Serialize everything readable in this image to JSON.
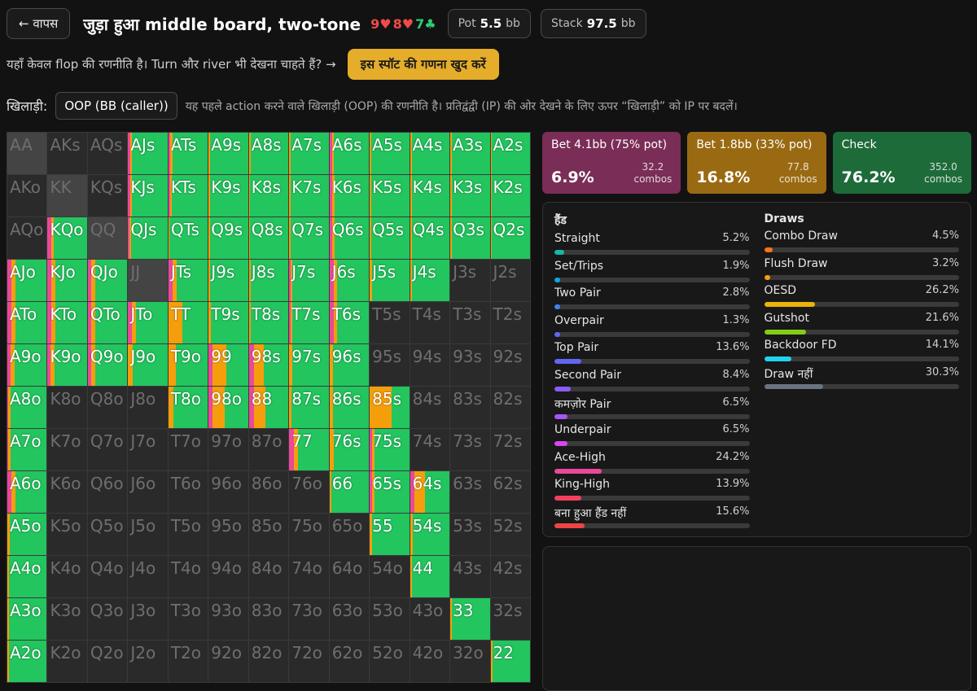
{
  "header": {
    "back_label": "← वापस",
    "title": "जुड़ा हुआ middle board, two-tone",
    "board_cards": [
      {
        "rank": "9",
        "suit": "♥",
        "color": "#ee4b4b"
      },
      {
        "rank": "8",
        "suit": "♥",
        "color": "#ee4b4b"
      },
      {
        "rank": "7",
        "suit": "♣",
        "color": "#2ecc71"
      }
    ],
    "pot_label": "Pot",
    "pot_value": "5.5",
    "pot_unit": "bb",
    "stack_label": "Stack",
    "stack_value": "97.5",
    "stack_unit": "bb"
  },
  "notice": {
    "text": "यहाँ केवल flop की रणनीति है। Turn और river भी देखना चाहते हैं? →",
    "button_label": "इस स्पॉट की गणना खुद करें"
  },
  "player": {
    "label": "खिलाड़ी:",
    "selected": "OOP (BB (caller))",
    "description": "यह पहले action करने वाले खिलाड़ी (OOP) की रणनीति है। प्रतिद्वंद्वी (IP) की ओर देखने के लिए ऊपर “खिलाड़ी” को IP पर बदलें।"
  },
  "colors": {
    "bet_large": "#ec4899",
    "bet_small": "#f59e0b",
    "check": "#22c55e",
    "bet_large_card": "#7a2d56",
    "bet_small_card": "#9a6a12",
    "check_card": "#1e6b3a"
  },
  "actions": [
    {
      "name": "Bet 4.1bb (75% pot)",
      "pct": "6.9%",
      "combos_value": "32.2",
      "combos_label": "combos",
      "card_color": "#7a2d56"
    },
    {
      "name": "Bet 1.8bb (33% pot)",
      "pct": "16.8%",
      "combos_value": "77.8",
      "combos_label": "combos",
      "card_color": "#9a6a12"
    },
    {
      "name": "Check",
      "pct": "76.2%",
      "combos_value": "352.0",
      "combos_label": "combos",
      "card_color": "#1e6b3a"
    }
  ],
  "hand_stats": {
    "title": "हैंड",
    "items": [
      {
        "name": "Straight",
        "value": "5.2%",
        "fraction": 0.052,
        "color": "#14b8a6"
      },
      {
        "name": "Set/Trips",
        "value": "1.9%",
        "fraction": 0.019,
        "color": "#0ea5e9"
      },
      {
        "name": "Two Pair",
        "value": "2.8%",
        "fraction": 0.028,
        "color": "#3b82f6"
      },
      {
        "name": "Overpair",
        "value": "1.3%",
        "fraction": 0.013,
        "color": "#6366f1"
      },
      {
        "name": "Top Pair",
        "value": "13.6%",
        "fraction": 0.136,
        "color": "#6366f1"
      },
      {
        "name": "Second Pair",
        "value": "8.4%",
        "fraction": 0.084,
        "color": "#8b5cf6"
      },
      {
        "name": "कमज़ोर Pair",
        "value": "6.5%",
        "fraction": 0.065,
        "color": "#a855f7"
      },
      {
        "name": "Underpair",
        "value": "6.5%",
        "fraction": 0.065,
        "color": "#d946ef"
      },
      {
        "name": "Ace-High",
        "value": "24.2%",
        "fraction": 0.242,
        "color": "#ec4899"
      },
      {
        "name": "King-High",
        "value": "13.9%",
        "fraction": 0.139,
        "color": "#f43f5e"
      },
      {
        "name": "बना हुआ हैंड नहीं",
        "value": "15.6%",
        "fraction": 0.156,
        "color": "#ef4444"
      }
    ]
  },
  "draw_stats": {
    "title": "Draws",
    "items": [
      {
        "name": "Combo Draw",
        "value": "4.5%",
        "fraction": 0.045,
        "color": "#f97316"
      },
      {
        "name": "Flush Draw",
        "value": "3.2%",
        "fraction": 0.032,
        "color": "#f59e0b"
      },
      {
        "name": "OESD",
        "value": "26.2%",
        "fraction": 0.262,
        "color": "#eab308"
      },
      {
        "name": "Gutshot",
        "value": "21.6%",
        "fraction": 0.216,
        "color": "#84cc16"
      },
      {
        "name": "Backdoor FD",
        "value": "14.1%",
        "fraction": 0.141,
        "color": "#22d3ee"
      },
      {
        "name": "Draw नहीं",
        "value": "30.3%",
        "fraction": 0.303,
        "color": "#6b7280"
      }
    ]
  },
  "grid": {
    "ranks": [
      "A",
      "K",
      "Q",
      "J",
      "T",
      "9",
      "8",
      "7",
      "6",
      "5",
      "4",
      "3",
      "2"
    ],
    "hands": {
      "AJs": [
        0.05,
        0.05,
        0.9
      ],
      "ATs": [
        0.05,
        0.05,
        0.9
      ],
      "A9s": [
        0,
        0.04,
        0.96
      ],
      "A8s": [
        0,
        0.04,
        0.96
      ],
      "A7s": [
        0,
        0.03,
        0.97
      ],
      "A6s": [
        0.06,
        0.05,
        0.89
      ],
      "A5s": [
        0,
        0.04,
        0.96
      ],
      "A4s": [
        0,
        0.04,
        0.96
      ],
      "A3s": [
        0,
        0.04,
        0.96
      ],
      "A2s": [
        0,
        0.04,
        0.96
      ],
      "KJs": [
        0.05,
        0.05,
        0.9
      ],
      "KTs": [
        0.04,
        0.04,
        0.92
      ],
      "K9s": [
        0,
        0.03,
        0.97
      ],
      "K8s": [
        0,
        0.03,
        0.97
      ],
      "K7s": [
        0,
        0.03,
        0.97
      ],
      "K6s": [
        0.07,
        0.05,
        0.88
      ],
      "K5s": [
        0,
        0.04,
        0.96
      ],
      "K4s": [
        0,
        0.04,
        0.96
      ],
      "K3s": [
        0,
        0.04,
        0.96
      ],
      "K2s": [
        0,
        0.04,
        0.96
      ],
      "KQo": [
        0.1,
        0.06,
        0.84
      ],
      "QJs": [
        0.04,
        0.04,
        0.92
      ],
      "QTs": [
        0,
        0.03,
        0.97
      ],
      "Q9s": [
        0,
        0.03,
        0.97
      ],
      "Q8s": [
        0,
        0.03,
        0.97
      ],
      "Q7s": [
        0,
        0.03,
        0.97
      ],
      "Q6s": [
        0.07,
        0.05,
        0.88
      ],
      "Q5s": [
        0,
        0.04,
        0.96
      ],
      "Q4s": [
        0,
        0.04,
        0.96
      ],
      "Q3s": [
        0,
        0.04,
        0.96
      ],
      "Q2s": [
        0,
        0.04,
        0.96
      ],
      "AJo": [
        0.1,
        0.1,
        0.8
      ],
      "KJo": [
        0.1,
        0.1,
        0.8
      ],
      "QJo": [
        0.08,
        0.1,
        0.82
      ],
      "JTs": [
        0.1,
        0.1,
        0.8
      ],
      "J9s": [
        0,
        0.03,
        0.97
      ],
      "J8s": [
        0,
        0.05,
        0.95
      ],
      "J7s": [
        0.03,
        0.05,
        0.92
      ],
      "J6s": [
        0.1,
        0.1,
        0.8
      ],
      "J5s": [
        0,
        0.06,
        0.94
      ],
      "J4s": [
        0,
        0.04,
        0.96
      ],
      "ATo": [
        0.1,
        0.1,
        0.8
      ],
      "KTo": [
        0.1,
        0.1,
        0.8
      ],
      "QTo": [
        0.08,
        0.1,
        0.82
      ],
      "JTo": [
        0.1,
        0.1,
        0.8
      ],
      "TT": [
        0,
        0.35,
        0.65
      ],
      "T9s": [
        0,
        0.05,
        0.95
      ],
      "T8s": [
        0,
        0.05,
        0.95
      ],
      "T7s": [
        0.03,
        0.05,
        0.92
      ],
      "T6s": [
        0.1,
        0.1,
        0.8
      ],
      "A9o": [
        0.08,
        0.1,
        0.82
      ],
      "K9o": [
        0.08,
        0.1,
        0.82
      ],
      "Q9o": [
        0.08,
        0.1,
        0.82
      ],
      "J9o": [
        0,
        0.12,
        0.88
      ],
      "T9o": [
        0,
        0.18,
        0.82
      ],
      "99": [
        0.1,
        0.35,
        0.55
      ],
      "98s": [
        0.12,
        0.25,
        0.63
      ],
      "97s": [
        0,
        0.07,
        0.93
      ],
      "96s": [
        0,
        0.08,
        0.92
      ],
      "A8o": [
        0.03,
        0.06,
        0.91
      ],
      "T8o": [
        0,
        0.12,
        0.88
      ],
      "98o": [
        0.1,
        0.3,
        0.6
      ],
      "88": [
        0.12,
        0.3,
        0.58
      ],
      "87s": [
        0,
        0.06,
        0.94
      ],
      "86s": [
        0,
        0.08,
        0.92
      ],
      "85s": [
        0,
        0.55,
        0.45
      ],
      "A7o": [
        0.03,
        0.06,
        0.91
      ],
      "77": [
        0.12,
        0.1,
        0.78
      ],
      "76s": [
        0,
        0.1,
        0.9
      ],
      "75s": [
        0.05,
        0.08,
        0.87
      ],
      "A6o": [
        0.1,
        0.1,
        0.8
      ],
      "66": [
        0,
        0.05,
        0.95
      ],
      "65s": [
        0.05,
        0.08,
        0.87
      ],
      "64s": [
        0.12,
        0.25,
        0.63
      ],
      "A5o": [
        0,
        0.06,
        0.94
      ],
      "55": [
        0,
        0.05,
        0.95
      ],
      "54s": [
        0,
        0.08,
        0.92
      ],
      "A4o": [
        0,
        0.05,
        0.95
      ],
      "44": [
        0,
        0.05,
        0.95
      ],
      "A3o": [
        0,
        0.05,
        0.95
      ],
      "33": [
        0,
        0.05,
        0.95
      ],
      "A2o": [
        0,
        0.05,
        0.95
      ],
      "22": [
        0,
        0.05,
        0.95
      ]
    }
  }
}
